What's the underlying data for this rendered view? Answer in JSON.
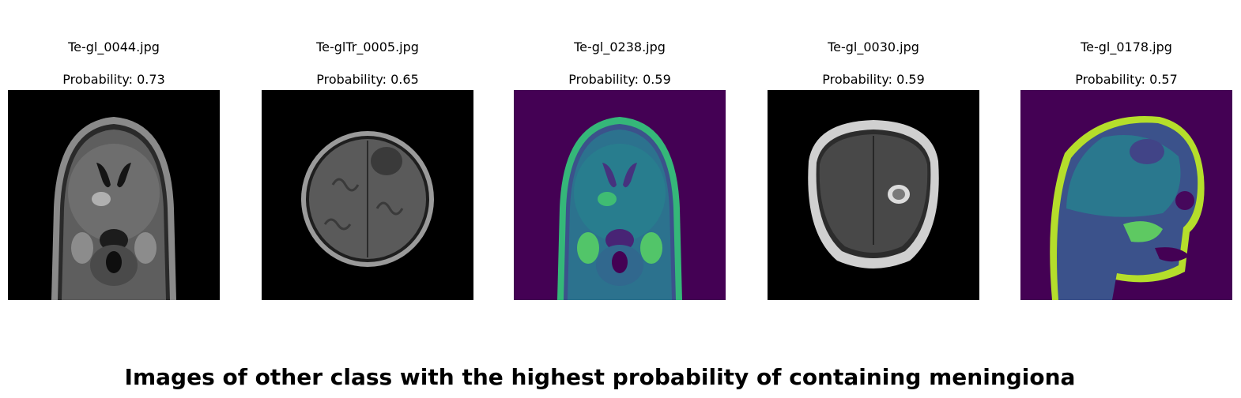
{
  "panels": [
    {
      "filename": "Te-gl_0044.jpg",
      "probability_label": "Probability: 0.73",
      "colormap": "gray"
    },
    {
      "filename": "Te-glTr_0005.jpg",
      "probability_label": "Probability: 0.65",
      "colormap": "gray"
    },
    {
      "filename": "Te-gl_0238.jpg",
      "probability_label": "Probability: 0.59",
      "colormap": "viridis"
    },
    {
      "filename": "Te-gl_0030.jpg",
      "probability_label": "Probability: 0.59",
      "colormap": "gray"
    },
    {
      "filename": "Te-gl_0178.jpg",
      "probability_label": "Probability: 0.57",
      "colormap": "viridis"
    }
  ],
  "figure_title": "Images of other class with the highest probability of containing meningiona",
  "colors": {
    "background": "#ffffff",
    "gray_bg": "#000000",
    "viridis_bg": "#440154"
  }
}
